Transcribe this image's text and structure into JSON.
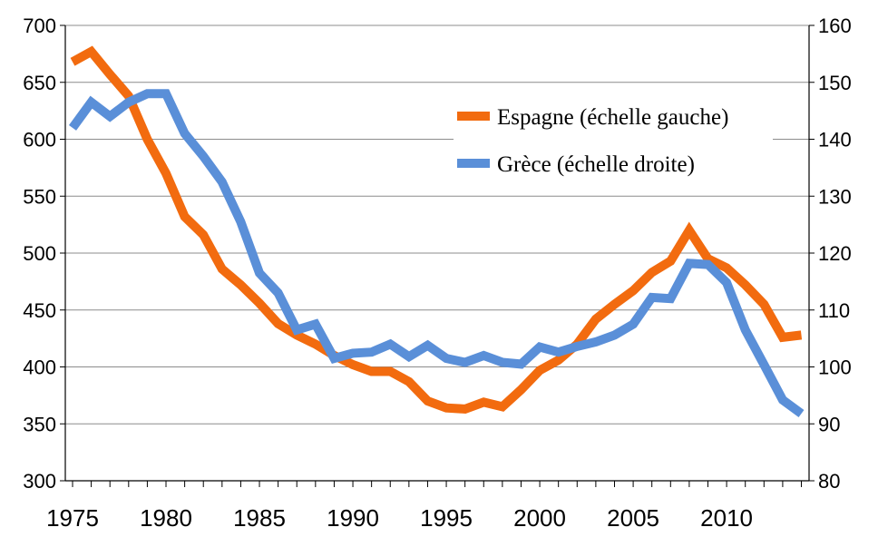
{
  "chart_data": {
    "type": "line",
    "x": [
      1975,
      1976,
      1977,
      1978,
      1979,
      1980,
      1981,
      1982,
      1983,
      1984,
      1985,
      1986,
      1987,
      1988,
      1989,
      1990,
      1991,
      1992,
      1993,
      1994,
      1995,
      1996,
      1997,
      1998,
      1999,
      2000,
      2001,
      2002,
      2003,
      2004,
      2005,
      2006,
      2007,
      2008,
      2009,
      2010,
      2011,
      2012,
      2013,
      2014
    ],
    "xticks": [
      "1975",
      "1980",
      "1985",
      "1990",
      "1995",
      "2000",
      "2005",
      "2010"
    ],
    "ylim_left": [
      300,
      700
    ],
    "yticks_left": [
      "300",
      "350",
      "400",
      "450",
      "500",
      "550",
      "600",
      "650",
      "700"
    ],
    "ylim_right": [
      80,
      160
    ],
    "yticks_right": [
      "80",
      "90",
      "100",
      "110",
      "120",
      "130",
      "140",
      "150",
      "160"
    ],
    "grid": true,
    "legend_position": "top-right",
    "series": [
      {
        "name": "Espagne (échelle gauche)",
        "axis": "left",
        "color": "#F26B0F",
        "values": [
          668,
          677,
          657,
          638,
          600,
          570,
          532,
          516,
          486,
          472,
          456,
          438,
          428,
          420,
          410,
          402,
          396,
          396,
          387,
          370,
          364,
          363,
          369,
          365,
          380,
          397,
          406,
          420,
          442,
          455,
          467,
          483,
          493,
          520,
          495,
          487,
          472,
          455,
          426,
          428
        ]
      },
      {
        "name": "Grèce (échelle droite)",
        "axis": "right",
        "color": "#5A8FD8",
        "values": [
          142,
          146.5,
          144,
          146.5,
          148,
          148,
          141,
          137,
          132.5,
          125.5,
          116.5,
          113,
          106.5,
          107.5,
          101.5,
          102.4,
          102.6,
          104,
          101.8,
          103.8,
          101.5,
          100.8,
          102,
          100.8,
          100.5,
          103.5,
          102.6,
          103.6,
          104.4,
          105.6,
          107.5,
          112.2,
          112,
          118.2,
          118,
          114.8,
          106.5,
          100.4,
          94.2,
          91.8
        ]
      }
    ]
  }
}
